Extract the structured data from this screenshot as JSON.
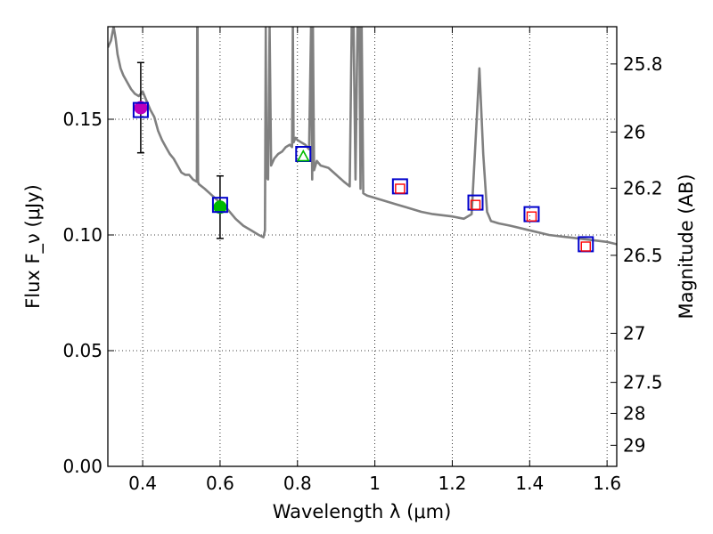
{
  "chart_data": {
    "type": "line",
    "title": "",
    "xlabel": "Wavelength λ (μm)",
    "ylabel": "Flux F_ν (μJy)",
    "y2label": "Magnitude (AB)",
    "xlim": [
      0.31,
      1.625
    ],
    "ylim": [
      0.0,
      0.19
    ],
    "grid": true,
    "x_ticks": [
      0.4,
      0.6,
      0.8,
      1.0,
      1.2,
      1.4,
      1.6
    ],
    "x_tick_labels": [
      "0.4",
      "0.6",
      "0.8",
      "1",
      "1.2",
      "1.4",
      "1.6"
    ],
    "y_ticks": [
      0.0,
      0.05,
      0.1,
      0.15
    ],
    "y_tick_labels": [
      "0.00",
      "0.05",
      "0.10",
      "0.15"
    ],
    "mag_ticks": [
      {
        "label": "25.8",
        "flux": 0.1739
      },
      {
        "label": "26",
        "flux": 0.1445
      },
      {
        "label": "26.2",
        "flux": 0.1202
      },
      {
        "label": "26.5",
        "flux": 0.0912
      },
      {
        "label": "27",
        "flux": 0.0575
      },
      {
        "label": "27.5",
        "flux": 0.0363
      },
      {
        "label": "28",
        "flux": 0.0229
      },
      {
        "label": "29",
        "flux": 0.0091
      }
    ],
    "model_spectrum": {
      "name": "SED model",
      "color": "#808080",
      "x": [
        0.31,
        0.318,
        0.325,
        0.33,
        0.335,
        0.343,
        0.35,
        0.36,
        0.37,
        0.38,
        0.39,
        0.4,
        0.41,
        0.42,
        0.43,
        0.44,
        0.45,
        0.46,
        0.47,
        0.48,
        0.49,
        0.5,
        0.51,
        0.52,
        0.53,
        0.54,
        0.541,
        0.542,
        0.543,
        0.545,
        0.56,
        0.58,
        0.6,
        0.62,
        0.64,
        0.66,
        0.68,
        0.7,
        0.712,
        0.716,
        0.718,
        0.72,
        0.724,
        0.728,
        0.732,
        0.74,
        0.75,
        0.76,
        0.77,
        0.78,
        0.786,
        0.788,
        0.79,
        0.795,
        0.8,
        0.81,
        0.82,
        0.83,
        0.835,
        0.838,
        0.84,
        0.843,
        0.85,
        0.86,
        0.88,
        0.9,
        0.92,
        0.935,
        0.94,
        0.945,
        0.95,
        0.955,
        0.96,
        0.963,
        0.966,
        0.97,
        0.98,
        1.0,
        1.02,
        1.04,
        1.06,
        1.08,
        1.1,
        1.12,
        1.15,
        1.2,
        1.23,
        1.25,
        1.26,
        1.27,
        1.28,
        1.29,
        1.3,
        1.32,
        1.35,
        1.4,
        1.45,
        1.5,
        1.55,
        1.6,
        1.625
      ],
      "y": [
        0.181,
        0.184,
        0.19,
        0.185,
        0.178,
        0.172,
        0.169,
        0.166,
        0.163,
        0.161,
        0.16,
        0.162,
        0.158,
        0.154,
        0.151,
        0.145,
        0.141,
        0.138,
        0.135,
        0.133,
        0.13,
        0.127,
        0.126,
        0.126,
        0.124,
        0.123,
        0.19,
        0.19,
        0.123,
        0.122,
        0.12,
        0.117,
        0.114,
        0.111,
        0.107,
        0.104,
        0.102,
        0.1,
        0.099,
        0.102,
        0.19,
        0.125,
        0.124,
        0.19,
        0.13,
        0.133,
        0.135,
        0.136,
        0.138,
        0.139,
        0.138,
        0.19,
        0.14,
        0.142,
        0.141,
        0.14,
        0.139,
        0.137,
        0.19,
        0.124,
        0.19,
        0.128,
        0.132,
        0.13,
        0.129,
        0.126,
        0.123,
        0.121,
        0.19,
        0.19,
        0.124,
        0.19,
        0.19,
        0.12,
        0.19,
        0.118,
        0.117,
        0.116,
        0.115,
        0.114,
        0.113,
        0.112,
        0.111,
        0.11,
        0.109,
        0.108,
        0.107,
        0.109,
        0.14,
        0.172,
        0.135,
        0.11,
        0.106,
        0.105,
        0.104,
        0.102,
        0.1,
        0.099,
        0.098,
        0.097,
        0.096
      ]
    },
    "measured_points": [
      {
        "x": 0.395,
        "y": 0.155,
        "err": 0.0195,
        "color": "#bb00bb",
        "marker": "circle"
      },
      {
        "x": 0.6,
        "y": 0.112,
        "err": 0.0135,
        "color": "#00bb00",
        "marker": "circle"
      }
    ],
    "model_boxes": [
      {
        "x": 0.395,
        "y": 0.154,
        "color": "#0000cc"
      },
      {
        "x": 0.6,
        "y": 0.113,
        "color": "#0000cc"
      },
      {
        "x": 0.815,
        "y": 0.135,
        "color": "#0000cc"
      },
      {
        "x": 1.065,
        "y": 0.121,
        "color": "#0000cc"
      },
      {
        "x": 1.26,
        "y": 0.114,
        "color": "#0000cc"
      },
      {
        "x": 1.405,
        "y": 0.109,
        "color": "#0000cc"
      },
      {
        "x": 1.545,
        "y": 0.096,
        "color": "#0000cc"
      }
    ],
    "synthetic_points": [
      {
        "x": 0.815,
        "y": 0.134,
        "color": "#00bb00",
        "marker": "triangle"
      },
      {
        "x": 1.065,
        "y": 0.12,
        "color": "#ff0000",
        "marker": "square"
      },
      {
        "x": 1.26,
        "y": 0.113,
        "color": "#ff0000",
        "marker": "square"
      },
      {
        "x": 1.405,
        "y": 0.108,
        "color": "#ff0000",
        "marker": "square"
      },
      {
        "x": 1.545,
        "y": 0.095,
        "color": "#ff0000",
        "marker": "square"
      }
    ]
  }
}
